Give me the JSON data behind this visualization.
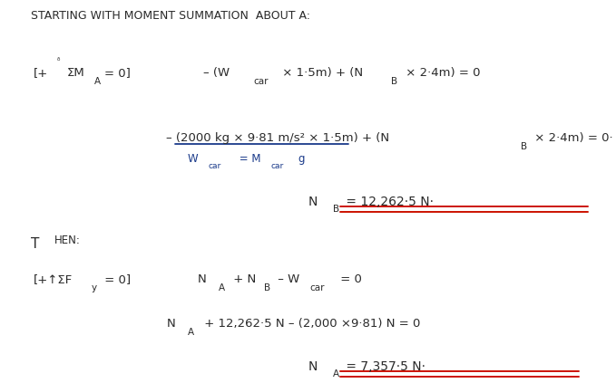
{
  "bg": "#ffffff",
  "ink": "#2a2a2a",
  "blue": "#1a3a8a",
  "red": "#cc1100",
  "figw": 6.79,
  "figh": 4.23,
  "dpi": 100,
  "title": "STARTING WITH MOMENT SUMMATION  ABOUT A:",
  "line1_label": "[+ᶞΣM",
  "line1_label_sub": "A",
  "line1_label_end": "= 0]",
  "line1_eq": "– (W",
  "line1_eq_sub1": "car",
  "line1_eq_mid": " × 1·5m) + (N",
  "line1_eq_sub2": "B",
  "line1_eq_end": " × 2·4m) = 0",
  "line2_eq": "– (2000 kg × 9·81 m/s² × 1·5m) + (N",
  "line2_eq_sub": "B",
  "line2_eq_end": " × 2·4m) = 0·",
  "wcar_label": "W",
  "wcar_sub": "car",
  "wcar_eq": " = M",
  "mcar_sub": "car",
  "mcar_g": "g",
  "nb_label": "N",
  "nb_sub": "B",
  "nb_result": " = 12,262·5 N·",
  "then": "T",
  "then2": "HEN:",
  "line4_label": "[+↑ΣF",
  "line4_sub": "y",
  "line4_end": " = 0]",
  "line4_eq_na": "N",
  "line4_sub_a": "A",
  "line4_eq_nb": " + N",
  "line4_sub_b": "B",
  "line4_wcar": " – W",
  "line4_wcar_sub": "car",
  "line4_eq_end": " = 0",
  "line5_na": "N",
  "line5_na_sub": "A",
  "line5_rest": " + 12,262·5 N – (2,000 ×9·81) N = 0",
  "line6_na": "N",
  "line6_na_sub": "A",
  "line6_result": " = 7,357·5 N·"
}
